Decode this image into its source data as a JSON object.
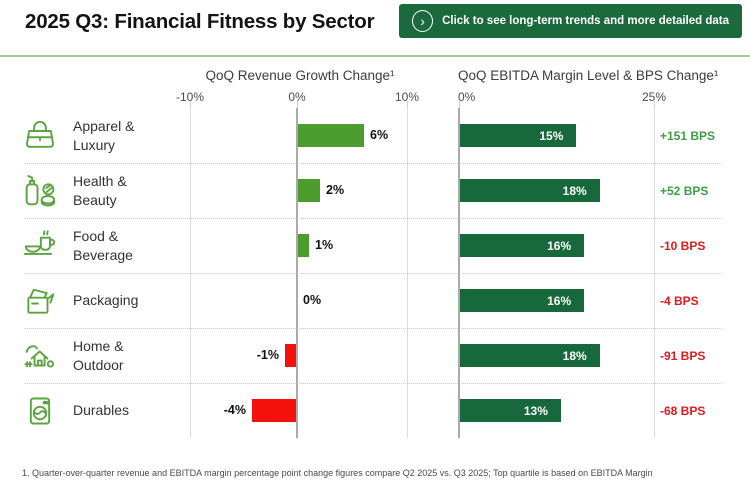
{
  "header": {
    "title": "2025 Q3: Financial Fitness by Sector",
    "cta_label": "Click to see long-term trends and more detailed data",
    "cta_icon": "chevron-right-circle-icon"
  },
  "colors": {
    "positive_growth_bar": "#4C9C2E",
    "negative_growth_bar": "#F5120D",
    "margin_bar": "#17693C",
    "button_green": "#1B6A3E",
    "bps_positive_text": "#3F9E44",
    "bps_negative_text": "#E0191C",
    "divider_green": "#A8CB8D",
    "icon_green": "#5BA442"
  },
  "chart_data": {
    "type": "bar",
    "categories": [
      "Apparel & Luxury",
      "Health & Beauty",
      "Food & Beverage",
      "Packaging",
      "Home & Outdoor",
      "Durables"
    ],
    "series": [
      {
        "name": "QoQ Revenue Growth Change (%)",
        "values": [
          6,
          2,
          1,
          0,
          -1,
          -4
        ]
      },
      {
        "name": "QoQ EBITDA Margin Level (%)",
        "values": [
          15,
          18,
          16,
          16,
          18,
          13
        ]
      },
      {
        "name": "QoQ EBITDA BPS Change",
        "values": [
          151,
          52,
          -10,
          -4,
          -91,
          -68
        ]
      }
    ],
    "charts": [
      {
        "title": "QoQ Revenue Growth Change¹",
        "ticks": [
          "-10%",
          "0%",
          "10%"
        ],
        "xlim": [
          -10,
          10
        ],
        "orientation": "horizontal-bar",
        "grid": "vertical"
      },
      {
        "title": "QoQ EBITDA Margin Level & BPS Change¹",
        "ticks": [
          "0%",
          "25%"
        ],
        "xlim": [
          0,
          25
        ],
        "orientation": "horizontal-bar",
        "grid": "vertical"
      }
    ],
    "legend": "none"
  },
  "rows": [
    {
      "sector": "Apparel & Luxury",
      "icon": "handbag-icon",
      "growth_value": 6,
      "growth_label": "6%",
      "margin_value": 15,
      "margin_label": "15%",
      "bps_value": 151,
      "bps_label": "+151 BPS"
    },
    {
      "sector": "Health & Beauty",
      "icon": "cosmetics-icon",
      "growth_value": 2,
      "growth_label": "2%",
      "margin_value": 18,
      "margin_label": "18%",
      "bps_value": 52,
      "bps_label": "+52 BPS"
    },
    {
      "sector": "Food & Beverage",
      "icon": "food-beverage-icon",
      "growth_value": 1,
      "growth_label": "1%",
      "margin_value": 16,
      "margin_label": "16%",
      "bps_value": -10,
      "bps_label": "-10 BPS"
    },
    {
      "sector": "Packaging",
      "icon": "package-box-icon",
      "growth_value": 0,
      "growth_label": "0%",
      "margin_value": 16,
      "margin_label": "16%",
      "bps_value": -4,
      "bps_label": "-4 BPS"
    },
    {
      "sector": "Home & Outdoor",
      "icon": "house-tree-icon",
      "growth_value": -1,
      "growth_label": "-1%",
      "margin_value": 18,
      "margin_label": "18%",
      "bps_value": -91,
      "bps_label": "-91 BPS"
    },
    {
      "sector": "Durables",
      "icon": "washing-machine-icon",
      "growth_value": -4,
      "growth_label": "-4%",
      "margin_value": 13,
      "margin_label": "13%",
      "bps_value": -68,
      "bps_label": "-68 BPS"
    }
  ],
  "footnote": "1. Quarter-over-quarter revenue and EBITDA margin percentage point change figures compare Q2 2025 vs. Q3 2025; Top quartile is based on EBITDA Margin"
}
